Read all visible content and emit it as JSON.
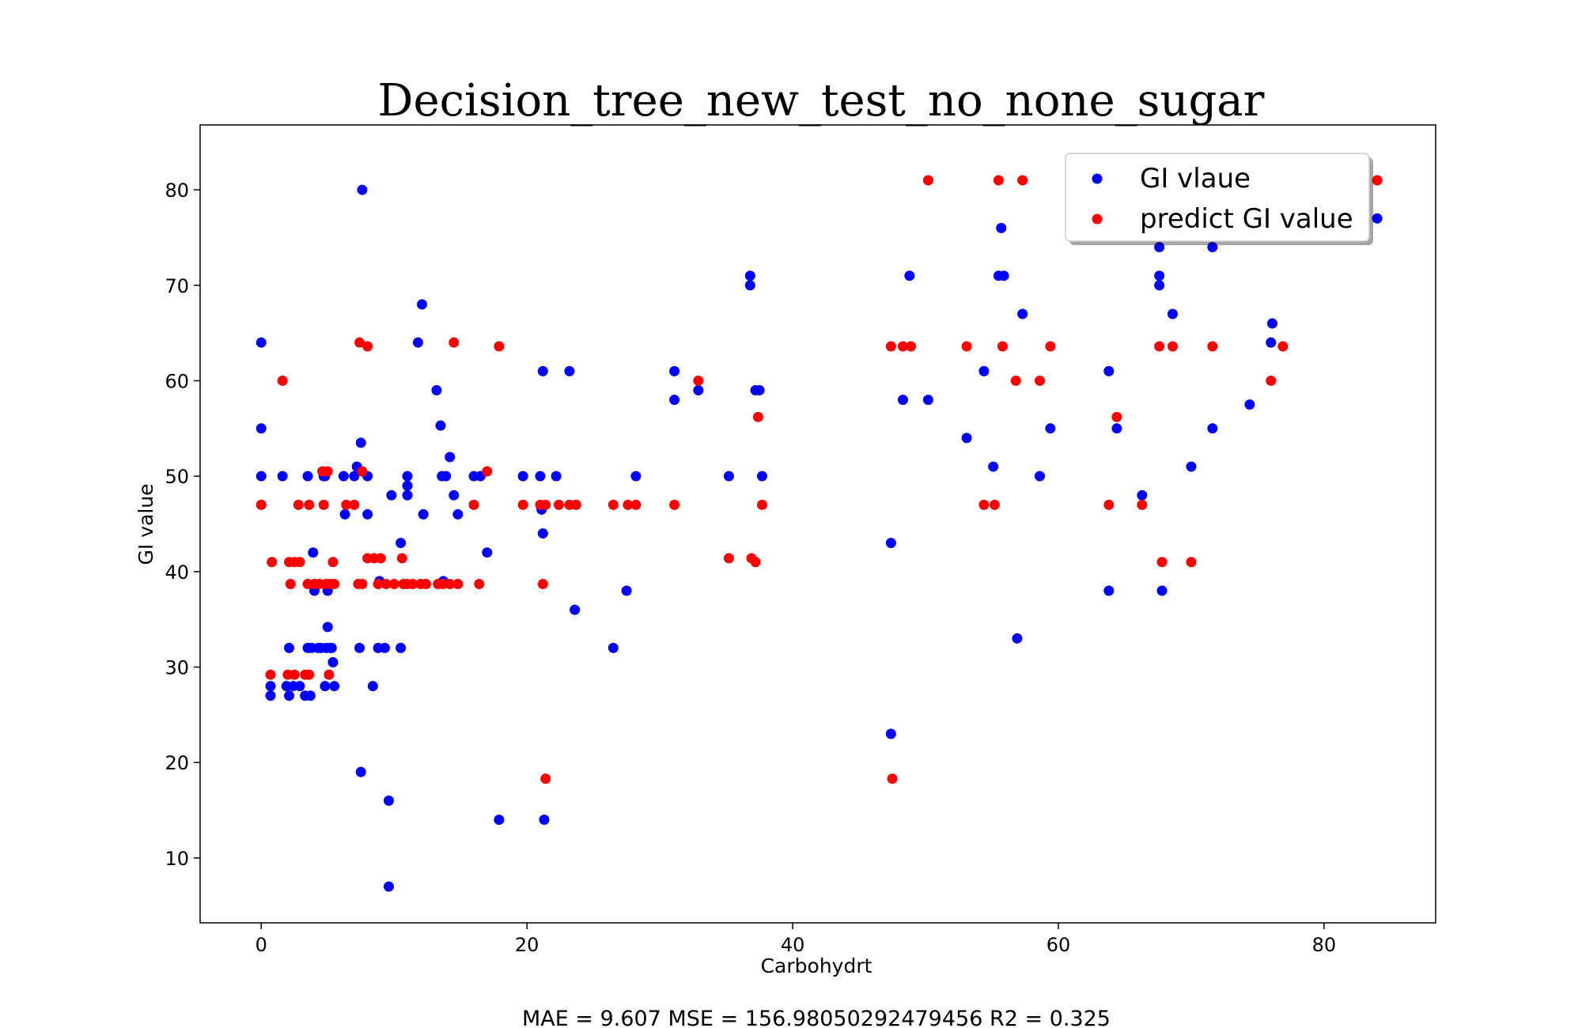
{
  "chart_data": {
    "type": "scatter",
    "title": "Decision_tree_new_test_no_none_sugar",
    "xlabel": "Carbohydrt",
    "ylabel": "GI value",
    "caption": "MAE = 9.607 MSE = 156.98050292479456 R2 = 0.325",
    "xlim": [
      -4.6,
      88.4
    ],
    "ylim": [
      3.2,
      86.8
    ],
    "xticks": [
      0,
      20,
      40,
      60,
      80
    ],
    "yticks": [
      10,
      20,
      30,
      40,
      50,
      60,
      70,
      80
    ],
    "grid": false,
    "legend_position": "top-right",
    "series": [
      {
        "name": "GI vlaue",
        "color": "#0000ff",
        "points": [
          [
            0.0,
            64
          ],
          [
            0.0,
            55
          ],
          [
            0.0,
            50
          ],
          [
            0.0,
            47
          ],
          [
            0.7,
            28
          ],
          [
            0.7,
            27
          ],
          [
            1.6,
            50
          ],
          [
            1.9,
            28
          ],
          [
            2.1,
            32
          ],
          [
            2.1,
            27
          ],
          [
            2.4,
            28
          ],
          [
            2.9,
            28
          ],
          [
            3.3,
            27
          ],
          [
            3.5,
            50
          ],
          [
            3.5,
            32
          ],
          [
            3.7,
            27
          ],
          [
            3.8,
            32
          ],
          [
            3.9,
            42
          ],
          [
            4.0,
            38
          ],
          [
            4.3,
            32
          ],
          [
            4.5,
            32
          ],
          [
            4.7,
            50
          ],
          [
            4.8,
            28
          ],
          [
            4.8,
            50
          ],
          [
            4.9,
            32
          ],
          [
            5.0,
            34.2
          ],
          [
            5.0,
            38
          ],
          [
            5.2,
            32
          ],
          [
            5.3,
            32
          ],
          [
            5.4,
            30.5
          ],
          [
            5.5,
            28
          ],
          [
            6.2,
            50
          ],
          [
            6.3,
            46
          ],
          [
            7.0,
            50
          ],
          [
            7.2,
            51
          ],
          [
            7.4,
            32
          ],
          [
            7.5,
            19
          ],
          [
            7.5,
            53.5
          ],
          [
            7.6,
            80
          ],
          [
            8.0,
            50
          ],
          [
            8.0,
            46
          ],
          [
            8.4,
            28
          ],
          [
            8.8,
            32
          ],
          [
            8.9,
            39
          ],
          [
            9.3,
            32
          ],
          [
            9.6,
            16
          ],
          [
            9.6,
            7
          ],
          [
            9.8,
            48
          ],
          [
            10.5,
            43
          ],
          [
            10.5,
            32
          ],
          [
            11.0,
            50
          ],
          [
            11.0,
            48
          ],
          [
            11.0,
            49
          ],
          [
            11.8,
            64
          ],
          [
            12.1,
            68
          ],
          [
            12.2,
            46
          ],
          [
            13.2,
            59
          ],
          [
            13.5,
            55.3
          ],
          [
            13.6,
            50
          ],
          [
            13.7,
            39
          ],
          [
            13.9,
            50
          ],
          [
            14.2,
            52
          ],
          [
            14.5,
            48
          ],
          [
            14.8,
            46
          ],
          [
            16.0,
            50
          ],
          [
            16.5,
            50
          ],
          [
            17.0,
            42
          ],
          [
            17.9,
            14
          ],
          [
            19.7,
            50
          ],
          [
            21.0,
            50
          ],
          [
            21.1,
            46.5
          ],
          [
            21.2,
            61
          ],
          [
            21.2,
            44
          ],
          [
            21.3,
            14
          ],
          [
            22.2,
            50
          ],
          [
            23.2,
            61
          ],
          [
            23.6,
            36
          ],
          [
            26.5,
            32
          ],
          [
            27.5,
            38
          ],
          [
            28.2,
            50
          ],
          [
            31.1,
            61
          ],
          [
            31.1,
            58
          ],
          [
            32.9,
            59
          ],
          [
            35.2,
            50
          ],
          [
            36.8,
            71
          ],
          [
            36.8,
            70
          ],
          [
            37.2,
            59
          ],
          [
            37.5,
            59
          ],
          [
            37.7,
            50
          ],
          [
            47.4,
            43
          ],
          [
            47.4,
            23
          ],
          [
            48.3,
            58
          ],
          [
            48.8,
            71
          ],
          [
            50.2,
            58
          ],
          [
            53.1,
            54
          ],
          [
            54.4,
            61
          ],
          [
            55.1,
            51
          ],
          [
            55.5,
            71
          ],
          [
            55.7,
            76
          ],
          [
            55.9,
            71
          ],
          [
            56.9,
            33
          ],
          [
            57.3,
            67
          ],
          [
            58.6,
            50
          ],
          [
            59.4,
            55
          ],
          [
            63.8,
            61
          ],
          [
            63.8,
            38
          ],
          [
            64.4,
            55
          ],
          [
            66.3,
            48
          ],
          [
            67.6,
            74
          ],
          [
            67.6,
            71
          ],
          [
            67.6,
            70
          ],
          [
            67.8,
            38
          ],
          [
            68.6,
            67
          ],
          [
            70.0,
            51
          ],
          [
            71.6,
            55
          ],
          [
            71.6,
            74
          ],
          [
            74.4,
            57.5
          ],
          [
            76.0,
            64
          ],
          [
            76.1,
            66
          ],
          [
            84.0,
            77
          ]
        ]
      },
      {
        "name": "predict GI value",
        "color": "#ff0000",
        "points": [
          [
            0.0,
            47
          ],
          [
            0.7,
            29.2
          ],
          [
            0.8,
            41
          ],
          [
            1.6,
            60
          ],
          [
            2.0,
            29.2
          ],
          [
            2.1,
            41
          ],
          [
            2.2,
            38.7
          ],
          [
            2.5,
            29.2
          ],
          [
            2.5,
            41
          ],
          [
            2.8,
            47
          ],
          [
            2.9,
            41
          ],
          [
            3.3,
            29.2
          ],
          [
            3.5,
            38.7
          ],
          [
            3.6,
            47
          ],
          [
            3.6,
            29.2
          ],
          [
            4.0,
            38.7
          ],
          [
            4.4,
            38.7
          ],
          [
            4.6,
            50.5
          ],
          [
            4.7,
            47
          ],
          [
            4.9,
            38.7
          ],
          [
            5.0,
            50.5
          ],
          [
            5.1,
            29.2
          ],
          [
            5.2,
            38.7
          ],
          [
            5.4,
            41
          ],
          [
            5.5,
            38.7
          ],
          [
            6.4,
            47
          ],
          [
            7.0,
            47
          ],
          [
            7.3,
            38.7
          ],
          [
            7.4,
            64
          ],
          [
            7.6,
            50.5
          ],
          [
            7.6,
            38.7
          ],
          [
            8.0,
            63.6
          ],
          [
            8.0,
            41.4
          ],
          [
            8.5,
            41.4
          ],
          [
            8.8,
            38.7
          ],
          [
            9.0,
            41.4
          ],
          [
            9.4,
            38.7
          ],
          [
            10.0,
            38.7
          ],
          [
            10.6,
            41.4
          ],
          [
            10.7,
            38.7
          ],
          [
            11.0,
            38.7
          ],
          [
            11.4,
            38.7
          ],
          [
            12.0,
            38.7
          ],
          [
            12.4,
            38.7
          ],
          [
            13.3,
            38.7
          ],
          [
            13.7,
            38.7
          ],
          [
            14.2,
            38.7
          ],
          [
            14.5,
            64
          ],
          [
            14.8,
            38.7
          ],
          [
            16.0,
            47
          ],
          [
            16.4,
            38.7
          ],
          [
            17.0,
            50.5
          ],
          [
            17.9,
            63.6
          ],
          [
            19.7,
            47
          ],
          [
            21.0,
            47
          ],
          [
            21.2,
            38.7
          ],
          [
            21.4,
            18.3
          ],
          [
            21.4,
            47
          ],
          [
            22.4,
            47
          ],
          [
            23.2,
            47
          ],
          [
            23.7,
            47
          ],
          [
            26.5,
            47
          ],
          [
            27.6,
            47
          ],
          [
            28.2,
            47
          ],
          [
            31.1,
            47
          ],
          [
            32.9,
            60
          ],
          [
            35.2,
            41.4
          ],
          [
            36.9,
            41.4
          ],
          [
            37.2,
            41
          ],
          [
            37.4,
            56.2
          ],
          [
            37.7,
            47
          ],
          [
            47.4,
            63.6
          ],
          [
            47.5,
            18.3
          ],
          [
            48.3,
            63.6
          ],
          [
            48.9,
            63.6
          ],
          [
            50.2,
            81
          ],
          [
            53.1,
            63.6
          ],
          [
            54.4,
            47
          ],
          [
            55.2,
            47
          ],
          [
            55.5,
            81
          ],
          [
            55.8,
            63.6
          ],
          [
            56.8,
            60
          ],
          [
            57.3,
            81
          ],
          [
            58.6,
            60
          ],
          [
            59.4,
            63.6
          ],
          [
            63.8,
            47
          ],
          [
            64.4,
            56.2
          ],
          [
            66.3,
            47
          ],
          [
            67.6,
            63.6
          ],
          [
            67.8,
            41
          ],
          [
            68.6,
            63.6
          ],
          [
            70.0,
            41
          ],
          [
            71.6,
            63.6
          ],
          [
            76.0,
            60
          ],
          [
            76.9,
            63.6
          ],
          [
            84.0,
            81
          ]
        ]
      }
    ]
  }
}
